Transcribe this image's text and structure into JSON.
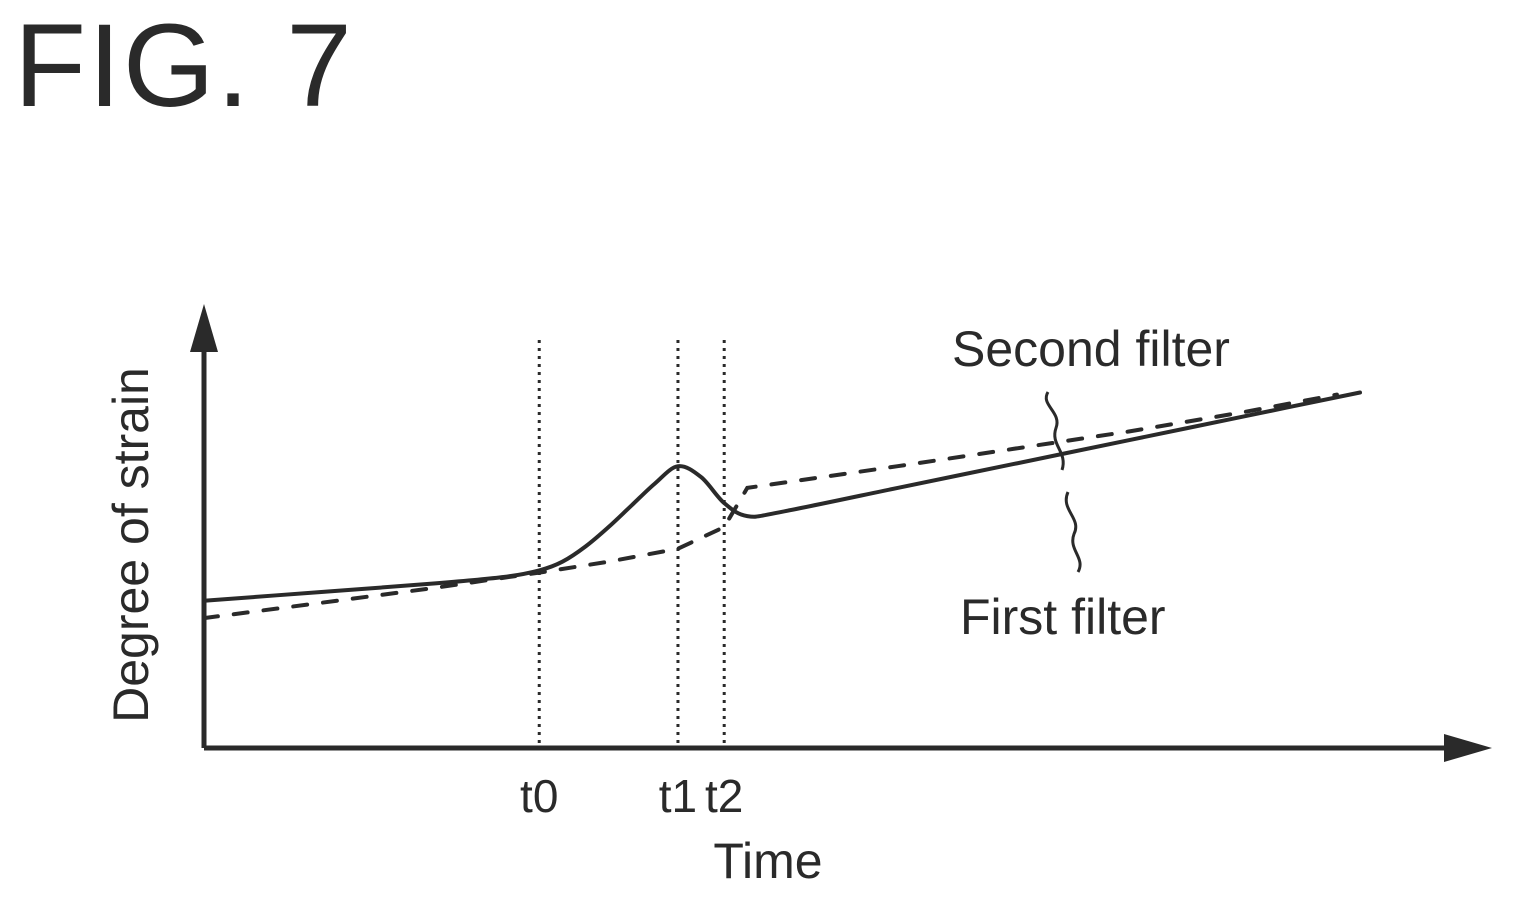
{
  "figure_label": "FIG. 7",
  "chart_data": {
    "type": "line",
    "xlabel": "Time",
    "ylabel": "Degree of strain",
    "x_ticks": [
      "t0",
      "t1",
      "t2"
    ],
    "xlim": [
      0,
      100
    ],
    "ylim": [
      0,
      100
    ],
    "tick_positions": {
      "t0": 29,
      "t1": 41,
      "t2": 45
    },
    "series": [
      {
        "name": "First filter",
        "style": "solid",
        "x": [
          0,
          10,
          20,
          26,
          29,
          31,
          33,
          35,
          37,
          39,
          41,
          43,
          45,
          47,
          50,
          60,
          70,
          80,
          90,
          100
        ],
        "y": [
          33,
          35,
          37,
          38.5,
          40,
          42,
          45.5,
          50,
          55,
          60,
          64,
          61.5,
          55.5,
          52.5,
          53.5,
          59,
          64.5,
          70,
          75.5,
          81
        ]
      },
      {
        "name": "Second filter",
        "style": "dashed",
        "x": [
          0,
          10,
          20,
          29,
          35,
          41,
          45,
          47,
          60,
          70,
          80,
          90,
          98
        ],
        "y": [
          29,
          32.5,
          36,
          39.5,
          42,
          45,
          50,
          59,
          64,
          68,
          72,
          76.5,
          80.5
        ]
      }
    ],
    "legend": "callout-labels"
  },
  "colors": {
    "line": "#2a2a2a",
    "background": "#ffffff"
  }
}
